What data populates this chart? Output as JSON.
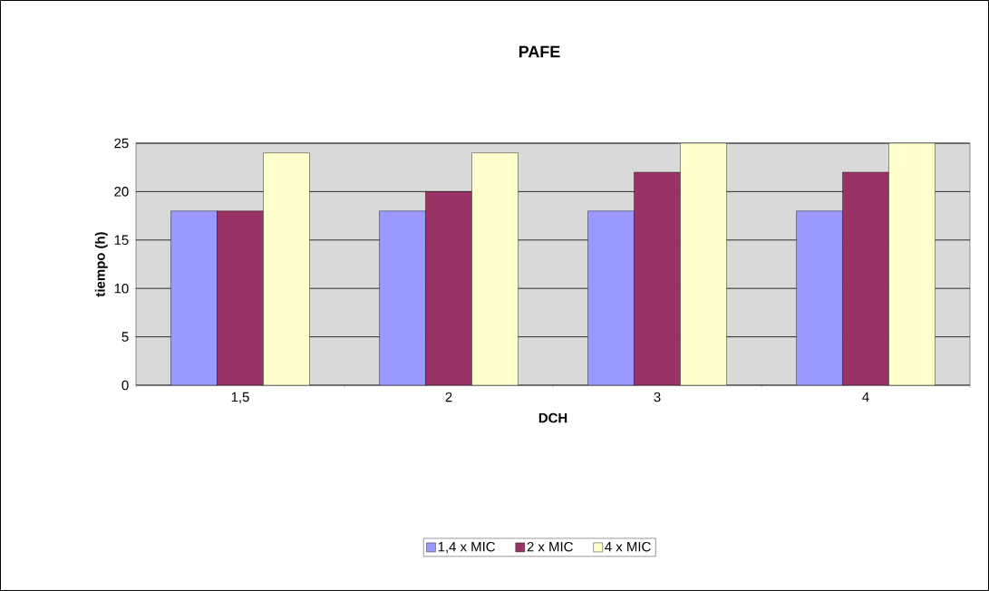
{
  "chart_data": {
    "type": "bar",
    "title": "PAFE",
    "xlabel": "DCH",
    "ylabel": "tiempo (h)",
    "categories": [
      "1,5",
      "2",
      "3",
      "4"
    ],
    "series": [
      {
        "name": "1,4 x MIC",
        "color": "#9999ff",
        "values": [
          18,
          18,
          18,
          18
        ]
      },
      {
        "name": "2 x MIC",
        "color": "#993366",
        "values": [
          18,
          20,
          22,
          22
        ]
      },
      {
        "name": "4 x MIC",
        "color": "#ffffcc",
        "values": [
          24,
          24,
          25,
          25
        ]
      }
    ],
    "ylim": [
      0,
      25
    ],
    "yticks": [
      0,
      5,
      10,
      15,
      20,
      25
    ],
    "grid": "y",
    "legend": "bottom"
  }
}
